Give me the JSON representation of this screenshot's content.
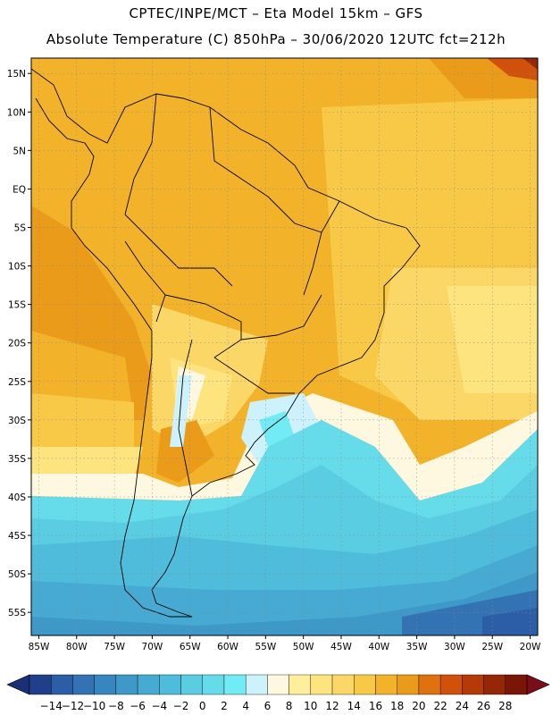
{
  "header": {
    "line1": "CPTEC/INPE/MCT –  Eta Model 15km – GFS",
    "line2": "Absolute Temperature (C) 850hPa – 30/06/2020 12UTC fct=212h"
  },
  "map": {
    "lat_labels": [
      "15N",
      "10N",
      "5N",
      "EQ",
      "5S",
      "10S",
      "15S",
      "20S",
      "25S",
      "30S",
      "35S",
      "40S",
      "45S",
      "50S",
      "55S"
    ],
    "lat_values": [
      15,
      10,
      5,
      0,
      -5,
      -10,
      -15,
      -20,
      -25,
      -30,
      -35,
      -40,
      -45,
      -50,
      -55
    ],
    "lon_labels": [
      "85W",
      "80W",
      "75W",
      "70W",
      "65W",
      "60W",
      "55W",
      "50W",
      "45W",
      "40W",
      "35W",
      "30W",
      "25W",
      "20W"
    ],
    "lon_values": [
      -85,
      -80,
      -75,
      -70,
      -65,
      -60,
      -55,
      -50,
      -45,
      -40,
      -35,
      -30,
      -25,
      -20
    ],
    "lat_range": [
      -58,
      17
    ],
    "lon_range": [
      -86,
      -19
    ],
    "grid": true
  },
  "colorbar": {
    "labels": [
      "-14",
      "-12",
      "-10",
      "-8",
      "-6",
      "-4",
      "-2",
      "0",
      "2",
      "4",
      "6",
      "8",
      "10",
      "12",
      "14",
      "16",
      "18",
      "20",
      "22",
      "24",
      "26",
      "28"
    ],
    "colors": [
      "#1f3f8a",
      "#2b5ea6",
      "#3373b3",
      "#3886bf",
      "#3e99c9",
      "#46aad2",
      "#4fbcdb",
      "#5acde2",
      "#66dcea",
      "#71ecf4",
      "#cdf2fb",
      "#fff8e0",
      "#ffef9c",
      "#fde47e",
      "#fbd767",
      "#f8c947",
      "#f2b22a",
      "#eb9b1a",
      "#e0710f",
      "#cf510b",
      "#b43a07",
      "#962706",
      "#7a1605"
    ],
    "under_color": "#1b2f75",
    "over_color": "#7a0d1a"
  }
}
